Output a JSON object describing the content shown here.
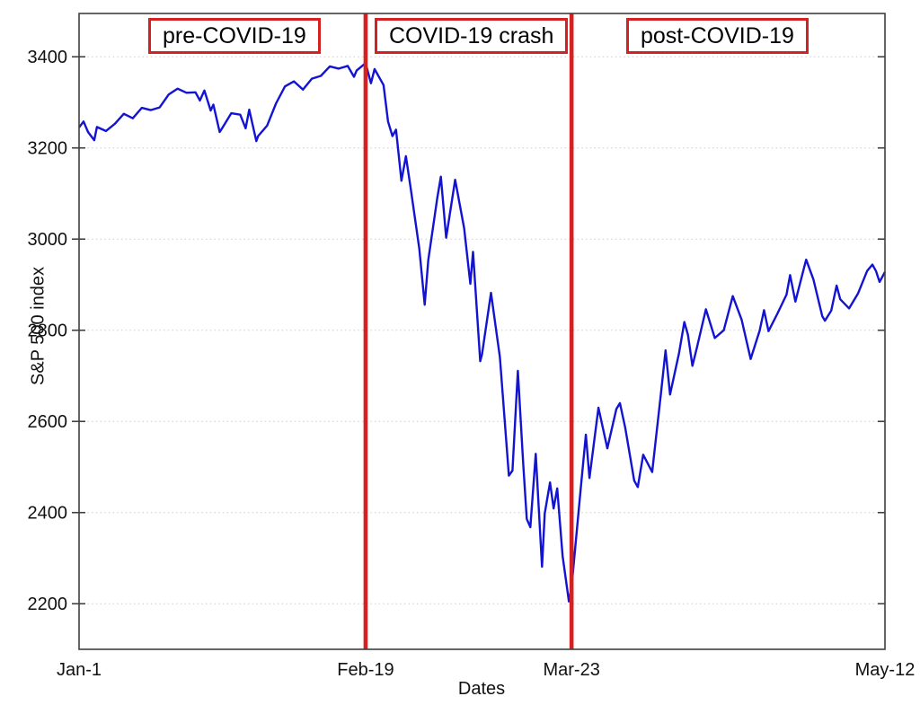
{
  "figure": {
    "background": "#ffffff",
    "description_visible_text_only": "Line chart of S&P 500 index vs Dates with three labeled periods"
  },
  "colors": {
    "series_line": "#1313d2",
    "event_vline": "#d42222",
    "label_box_border": "#d42222",
    "gridline": "#cccccc",
    "axis_border": "#404040",
    "text": "#111111"
  },
  "chart_data": {
    "type": "line",
    "title": "",
    "xlabel": "Dates",
    "ylabel": "S&P 500 index",
    "x_unit": "trading-day index (0 = Jan-1 tick, 90 = May-12 tick)",
    "xlim": [
      0,
      90
    ],
    "ylim": [
      2100,
      3495
    ],
    "grid": "horizontal dotted",
    "legend_position": "none",
    "x_ticks": [
      {
        "x": 0,
        "label": "Jan-1"
      },
      {
        "x": 32,
        "label": "Feb-19"
      },
      {
        "x": 55,
        "label": "Mar-23"
      },
      {
        "x": 90,
        "label": "May-12"
      }
    ],
    "y_ticks": [
      2200,
      2400,
      2600,
      2800,
      3000,
      3200,
      3400
    ],
    "vlines": [
      {
        "x": 32,
        "at_label": "Feb-19"
      },
      {
        "x": 55,
        "at_label": "Mar-23"
      }
    ],
    "regions": [
      {
        "label": "pre-COVID-19"
      },
      {
        "label": "COVID-19 crash"
      },
      {
        "label": "post-COVID-19"
      }
    ],
    "series": [
      {
        "name": "S&P 500 index",
        "color": "#1313d2",
        "points": [
          [
            0,
            3245
          ],
          [
            0.5,
            3258
          ],
          [
            1,
            3235
          ],
          [
            1.7,
            3217
          ],
          [
            2,
            3246
          ],
          [
            3,
            3237
          ],
          [
            4,
            3253
          ],
          [
            5,
            3275
          ],
          [
            6,
            3265
          ],
          [
            7,
            3288
          ],
          [
            8,
            3283
          ],
          [
            9,
            3289
          ],
          [
            10,
            3317
          ],
          [
            11,
            3330
          ],
          [
            12,
            3321
          ],
          [
            13,
            3322
          ],
          [
            13.5,
            3304
          ],
          [
            14,
            3326
          ],
          [
            14.7,
            3282
          ],
          [
            15,
            3295
          ],
          [
            15.7,
            3235
          ],
          [
            16,
            3244
          ],
          [
            17,
            3276
          ],
          [
            18,
            3273
          ],
          [
            18.6,
            3243
          ],
          [
            19,
            3284
          ],
          [
            19.8,
            3215
          ],
          [
            20,
            3226
          ],
          [
            21,
            3249
          ],
          [
            22,
            3298
          ],
          [
            23,
            3335
          ],
          [
            24,
            3346
          ],
          [
            25,
            3328
          ],
          [
            26,
            3352
          ],
          [
            27,
            3358
          ],
          [
            28,
            3379
          ],
          [
            29,
            3374
          ],
          [
            30,
            3380
          ],
          [
            30.7,
            3356
          ],
          [
            31,
            3370
          ],
          [
            32,
            3386
          ],
          [
            32.6,
            3342
          ],
          [
            33,
            3373
          ],
          [
            34,
            3338
          ],
          [
            34.5,
            3258
          ],
          [
            35,
            3226
          ],
          [
            35.4,
            3240
          ],
          [
            36,
            3128
          ],
          [
            36.5,
            3182
          ],
          [
            37,
            3116
          ],
          [
            38,
            2979
          ],
          [
            38.6,
            2856
          ],
          [
            39,
            2954
          ],
          [
            40,
            3090
          ],
          [
            40.4,
            3137
          ],
          [
            41,
            3003
          ],
          [
            42,
            3130
          ],
          [
            43,
            3024
          ],
          [
            43.7,
            2902
          ],
          [
            44,
            2972
          ],
          [
            44.8,
            2732
          ],
          [
            45,
            2747
          ],
          [
            46,
            2882
          ],
          [
            47,
            2741
          ],
          [
            48,
            2481
          ],
          [
            48.4,
            2492
          ],
          [
            49,
            2711
          ],
          [
            49.6,
            2509
          ],
          [
            50,
            2386
          ],
          [
            50.4,
            2368
          ],
          [
            51,
            2529
          ],
          [
            51.7,
            2281
          ],
          [
            52,
            2398
          ],
          [
            52.6,
            2466
          ],
          [
            53,
            2409
          ],
          [
            53.4,
            2453
          ],
          [
            54,
            2305
          ],
          [
            54.7,
            2205
          ],
          [
            55,
            2237
          ],
          [
            56,
            2447
          ],
          [
            56.6,
            2571
          ],
          [
            57,
            2476
          ],
          [
            58,
            2630
          ],
          [
            59,
            2541
          ],
          [
            60,
            2627
          ],
          [
            60.4,
            2640
          ],
          [
            61,
            2585
          ],
          [
            62,
            2470
          ],
          [
            62.4,
            2456
          ],
          [
            63,
            2527
          ],
          [
            64,
            2489
          ],
          [
            65,
            2664
          ],
          [
            65.5,
            2756
          ],
          [
            66,
            2659
          ],
          [
            67,
            2750
          ],
          [
            67.6,
            2818
          ],
          [
            68,
            2790
          ],
          [
            68.5,
            2722
          ],
          [
            69,
            2762
          ],
          [
            70,
            2846
          ],
          [
            71,
            2783
          ],
          [
            72,
            2800
          ],
          [
            73,
            2875
          ],
          [
            74,
            2823
          ],
          [
            75,
            2737
          ],
          [
            76,
            2799
          ],
          [
            76.5,
            2844
          ],
          [
            77,
            2798
          ],
          [
            78,
            2837
          ],
          [
            79,
            2878
          ],
          [
            79.4,
            2921
          ],
          [
            80,
            2863
          ],
          [
            81,
            2940
          ],
          [
            81.2,
            2955
          ],
          [
            82,
            2912
          ],
          [
            83,
            2831
          ],
          [
            83.3,
            2821
          ],
          [
            84,
            2843
          ],
          [
            84.6,
            2898
          ],
          [
            85,
            2868
          ],
          [
            86,
            2848
          ],
          [
            87,
            2881
          ],
          [
            88,
            2930
          ],
          [
            88.6,
            2944
          ],
          [
            89,
            2930
          ],
          [
            89.4,
            2906
          ],
          [
            90,
            2928
          ]
        ]
      }
    ]
  }
}
